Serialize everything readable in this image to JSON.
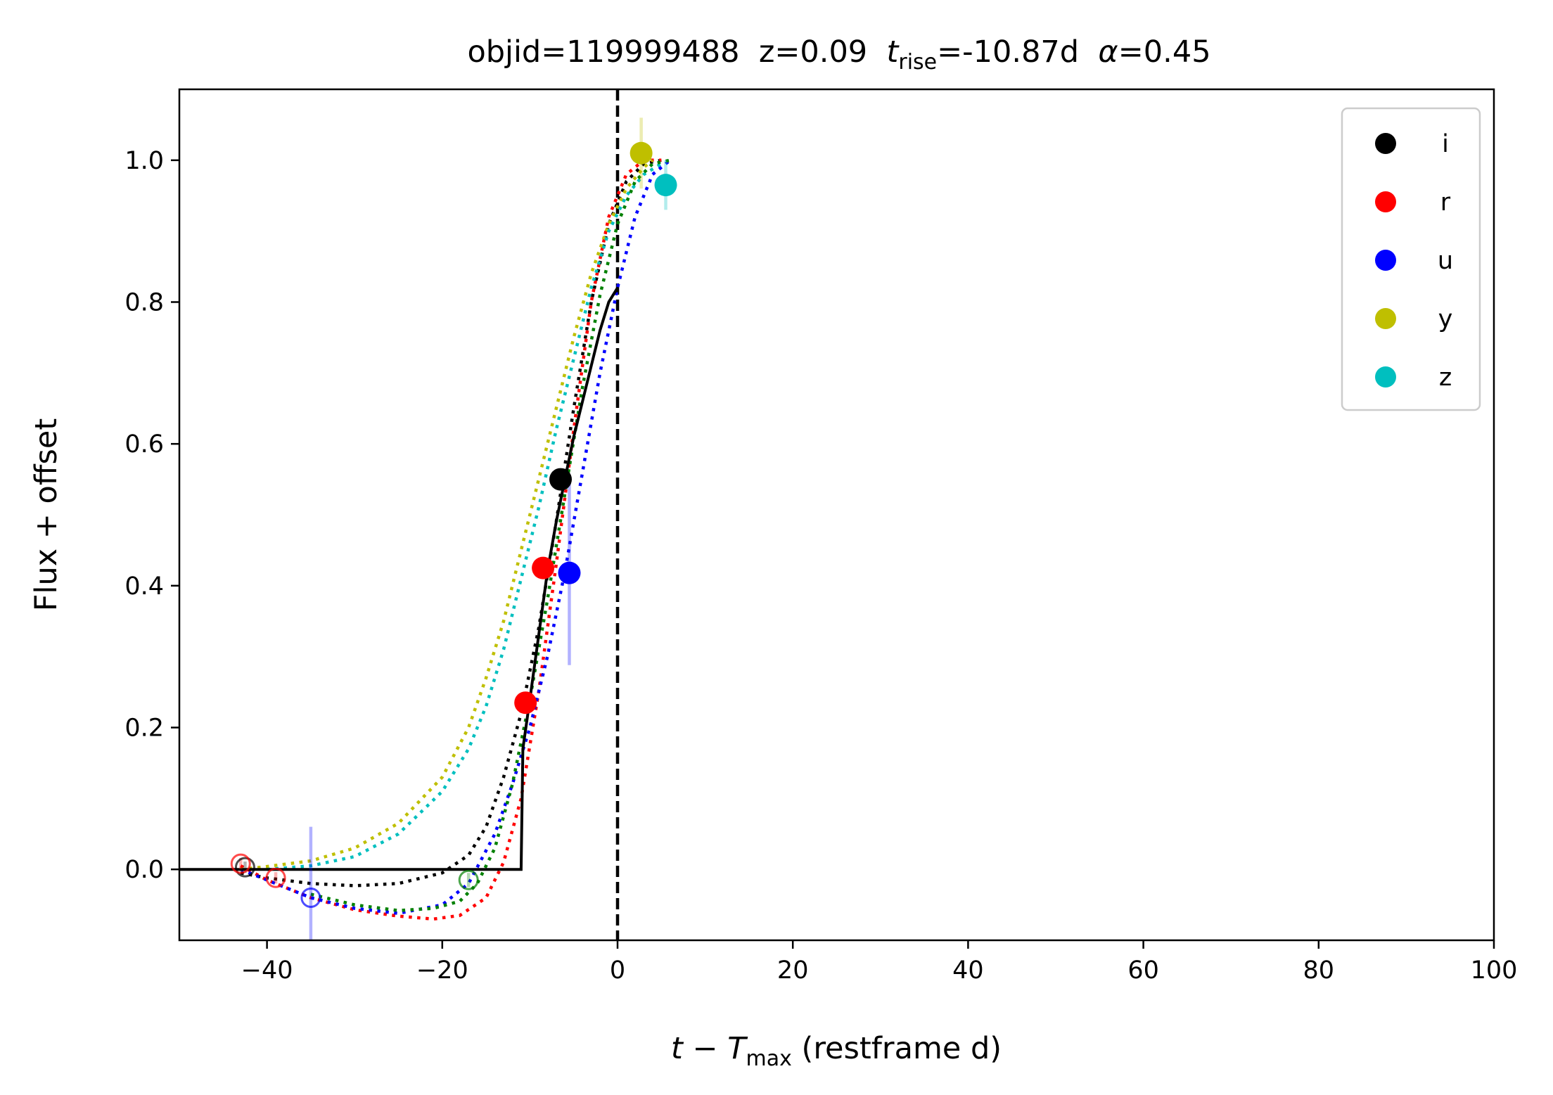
{
  "chart_data": {
    "type": "scatter",
    "title": {
      "prefix": "objid=119999488  z=0.09  ",
      "trise_var": "t",
      "trise_sub": "rise",
      "trise_value": "=-10.87d  ",
      "alpha_var": "α",
      "alpha_value": "=0.45"
    },
    "xlabel": {
      "var": "t",
      "minus": " − ",
      "tmax_var": "T",
      "tmax_sub": "max",
      "rest": " (restframe d)"
    },
    "ylabel": "Flux + offset",
    "xlim": [
      -50,
      100
    ],
    "ylim": [
      -0.1,
      1.1
    ],
    "xticks": [
      -40,
      -20,
      0,
      20,
      40,
      60,
      80,
      100
    ],
    "xtick_labels": [
      "−40",
      "−20",
      "0",
      "20",
      "40",
      "60",
      "80",
      "100"
    ],
    "yticks": [
      0.0,
      0.2,
      0.4,
      0.6,
      0.8,
      1.0
    ],
    "ytick_labels": [
      "0.0",
      "0.2",
      "0.4",
      "0.6",
      "0.8",
      "1.0"
    ],
    "vline_x": 0,
    "grid": false,
    "legend_position": "top-right",
    "series": [
      {
        "name": "i",
        "color": "#000000",
        "points": [
          [
            -6.5,
            0.55,
            0.01
          ]
        ],
        "open_points": [
          [
            -42.5,
            0.003,
            0.008
          ]
        ],
        "model": [
          [
            -43,
            -0.005
          ],
          [
            -40,
            -0.012
          ],
          [
            -35,
            -0.02
          ],
          [
            -30,
            -0.023
          ],
          [
            -25,
            -0.02
          ],
          [
            -20,
            -0.005
          ],
          [
            -17,
            0.02
          ],
          [
            -15,
            0.06
          ],
          [
            -13,
            0.13
          ],
          [
            -11,
            0.22
          ],
          [
            -9,
            0.34
          ],
          [
            -7,
            0.49
          ],
          [
            -5,
            0.65
          ],
          [
            -3,
            0.8
          ],
          [
            -1,
            0.91
          ],
          [
            1,
            0.97
          ],
          [
            3,
            0.995
          ],
          [
            5,
            1.0
          ]
        ],
        "step": [
          [
            -50,
            0
          ],
          [
            -11,
            0
          ],
          [
            -10.8,
            0.17
          ],
          [
            -10,
            0.24
          ],
          [
            -9,
            0.33
          ],
          [
            -8,
            0.42
          ],
          [
            -7,
            0.49
          ],
          [
            -6,
            0.55
          ],
          [
            -5,
            0.61
          ],
          [
            -4,
            0.66
          ],
          [
            -3,
            0.71
          ],
          [
            -2,
            0.76
          ],
          [
            -1,
            0.8
          ],
          [
            0,
            0.82
          ]
        ]
      },
      {
        "name": "r",
        "color": "#ff0000",
        "points": [
          [
            -10.5,
            0.235,
            0.01
          ],
          [
            -8.5,
            0.425,
            0.01
          ]
        ],
        "open_points": [
          [
            -43,
            0.008,
            0.008
          ],
          [
            -39,
            -0.012,
            0.008
          ]
        ],
        "model": [
          [
            -43,
            0.005
          ],
          [
            -40,
            -0.015
          ],
          [
            -35,
            -0.04
          ],
          [
            -30,
            -0.057
          ],
          [
            -25,
            -0.066
          ],
          [
            -21,
            -0.07
          ],
          [
            -18,
            -0.065
          ],
          [
            -15,
            -0.04
          ],
          [
            -13,
            0.01
          ],
          [
            -11,
            0.1
          ],
          [
            -9,
            0.25
          ],
          [
            -7,
            0.43
          ],
          [
            -5,
            0.62
          ],
          [
            -3,
            0.8
          ],
          [
            -1,
            0.92
          ],
          [
            1,
            0.98
          ],
          [
            3,
            1.0
          ],
          [
            5,
            1.0
          ]
        ]
      },
      {
        "name": "u",
        "color": "#0000ff",
        "points": [
          [
            -5.5,
            0.418,
            0.13
          ]
        ],
        "open_points": [
          [
            -35,
            -0.04,
            0.1
          ]
        ],
        "model": [
          [
            -43,
            0.0
          ],
          [
            -40,
            -0.015
          ],
          [
            -35,
            -0.04
          ],
          [
            -30,
            -0.055
          ],
          [
            -25,
            -0.062
          ],
          [
            -20,
            -0.05
          ],
          [
            -17,
            -0.02
          ],
          [
            -14,
            0.05
          ],
          [
            -12,
            0.12
          ],
          [
            -10,
            0.2
          ],
          [
            -8,
            0.3
          ],
          [
            -6,
            0.42
          ],
          [
            -4,
            0.56
          ],
          [
            -2,
            0.7
          ],
          [
            0,
            0.82
          ],
          [
            2,
            0.92
          ],
          [
            4,
            0.98
          ],
          [
            6,
            1.0
          ]
        ]
      },
      {
        "name": "y",
        "color": "#bfbf00",
        "points": [
          [
            2.7,
            1.01,
            0.05
          ]
        ],
        "open_points": [],
        "model": [
          [
            -43,
            0.0
          ],
          [
            -40,
            0.004
          ],
          [
            -35,
            0.012
          ],
          [
            -30,
            0.03
          ],
          [
            -25,
            0.065
          ],
          [
            -20,
            0.13
          ],
          [
            -17,
            0.2
          ],
          [
            -15,
            0.27
          ],
          [
            -13,
            0.35
          ],
          [
            -11,
            0.45
          ],
          [
            -9,
            0.55
          ],
          [
            -7,
            0.65
          ],
          [
            -5,
            0.75
          ],
          [
            -3,
            0.84
          ],
          [
            -1,
            0.91
          ],
          [
            1,
            0.96
          ],
          [
            3,
            0.99
          ],
          [
            4,
            1.0
          ]
        ]
      },
      {
        "name": "z",
        "color": "#00bfbf",
        "points": [
          [
            5.5,
            0.965,
            0.035
          ]
        ],
        "open_points": [],
        "model": [
          [
            -40,
            0.0
          ],
          [
            -35,
            0.005
          ],
          [
            -30,
            0.018
          ],
          [
            -25,
            0.05
          ],
          [
            -20,
            0.11
          ],
          [
            -17,
            0.17
          ],
          [
            -15,
            0.23
          ],
          [
            -13,
            0.31
          ],
          [
            -11,
            0.41
          ],
          [
            -9,
            0.51
          ],
          [
            -7,
            0.62
          ],
          [
            -5,
            0.72
          ],
          [
            -3,
            0.82
          ],
          [
            -1,
            0.9
          ],
          [
            1,
            0.95
          ],
          [
            3,
            0.98
          ],
          [
            5,
            0.995
          ]
        ]
      },
      {
        "name": "",
        "color": "#008000",
        "legend": false,
        "points": [],
        "open_points": [
          [
            -17,
            -0.015,
            0.01
          ]
        ],
        "model": [
          [
            -35,
            -0.035
          ],
          [
            -30,
            -0.05
          ],
          [
            -25,
            -0.058
          ],
          [
            -21,
            -0.055
          ],
          [
            -18,
            -0.045
          ],
          [
            -16,
            -0.02
          ],
          [
            -14,
            0.03
          ],
          [
            -12,
            0.12
          ],
          [
            -10,
            0.24
          ],
          [
            -8,
            0.38
          ],
          [
            -6,
            0.53
          ],
          [
            -4,
            0.68
          ],
          [
            -2,
            0.81
          ],
          [
            0,
            0.91
          ],
          [
            2,
            0.97
          ],
          [
            4,
            0.995
          ],
          [
            6,
            1.0
          ]
        ]
      }
    ]
  }
}
